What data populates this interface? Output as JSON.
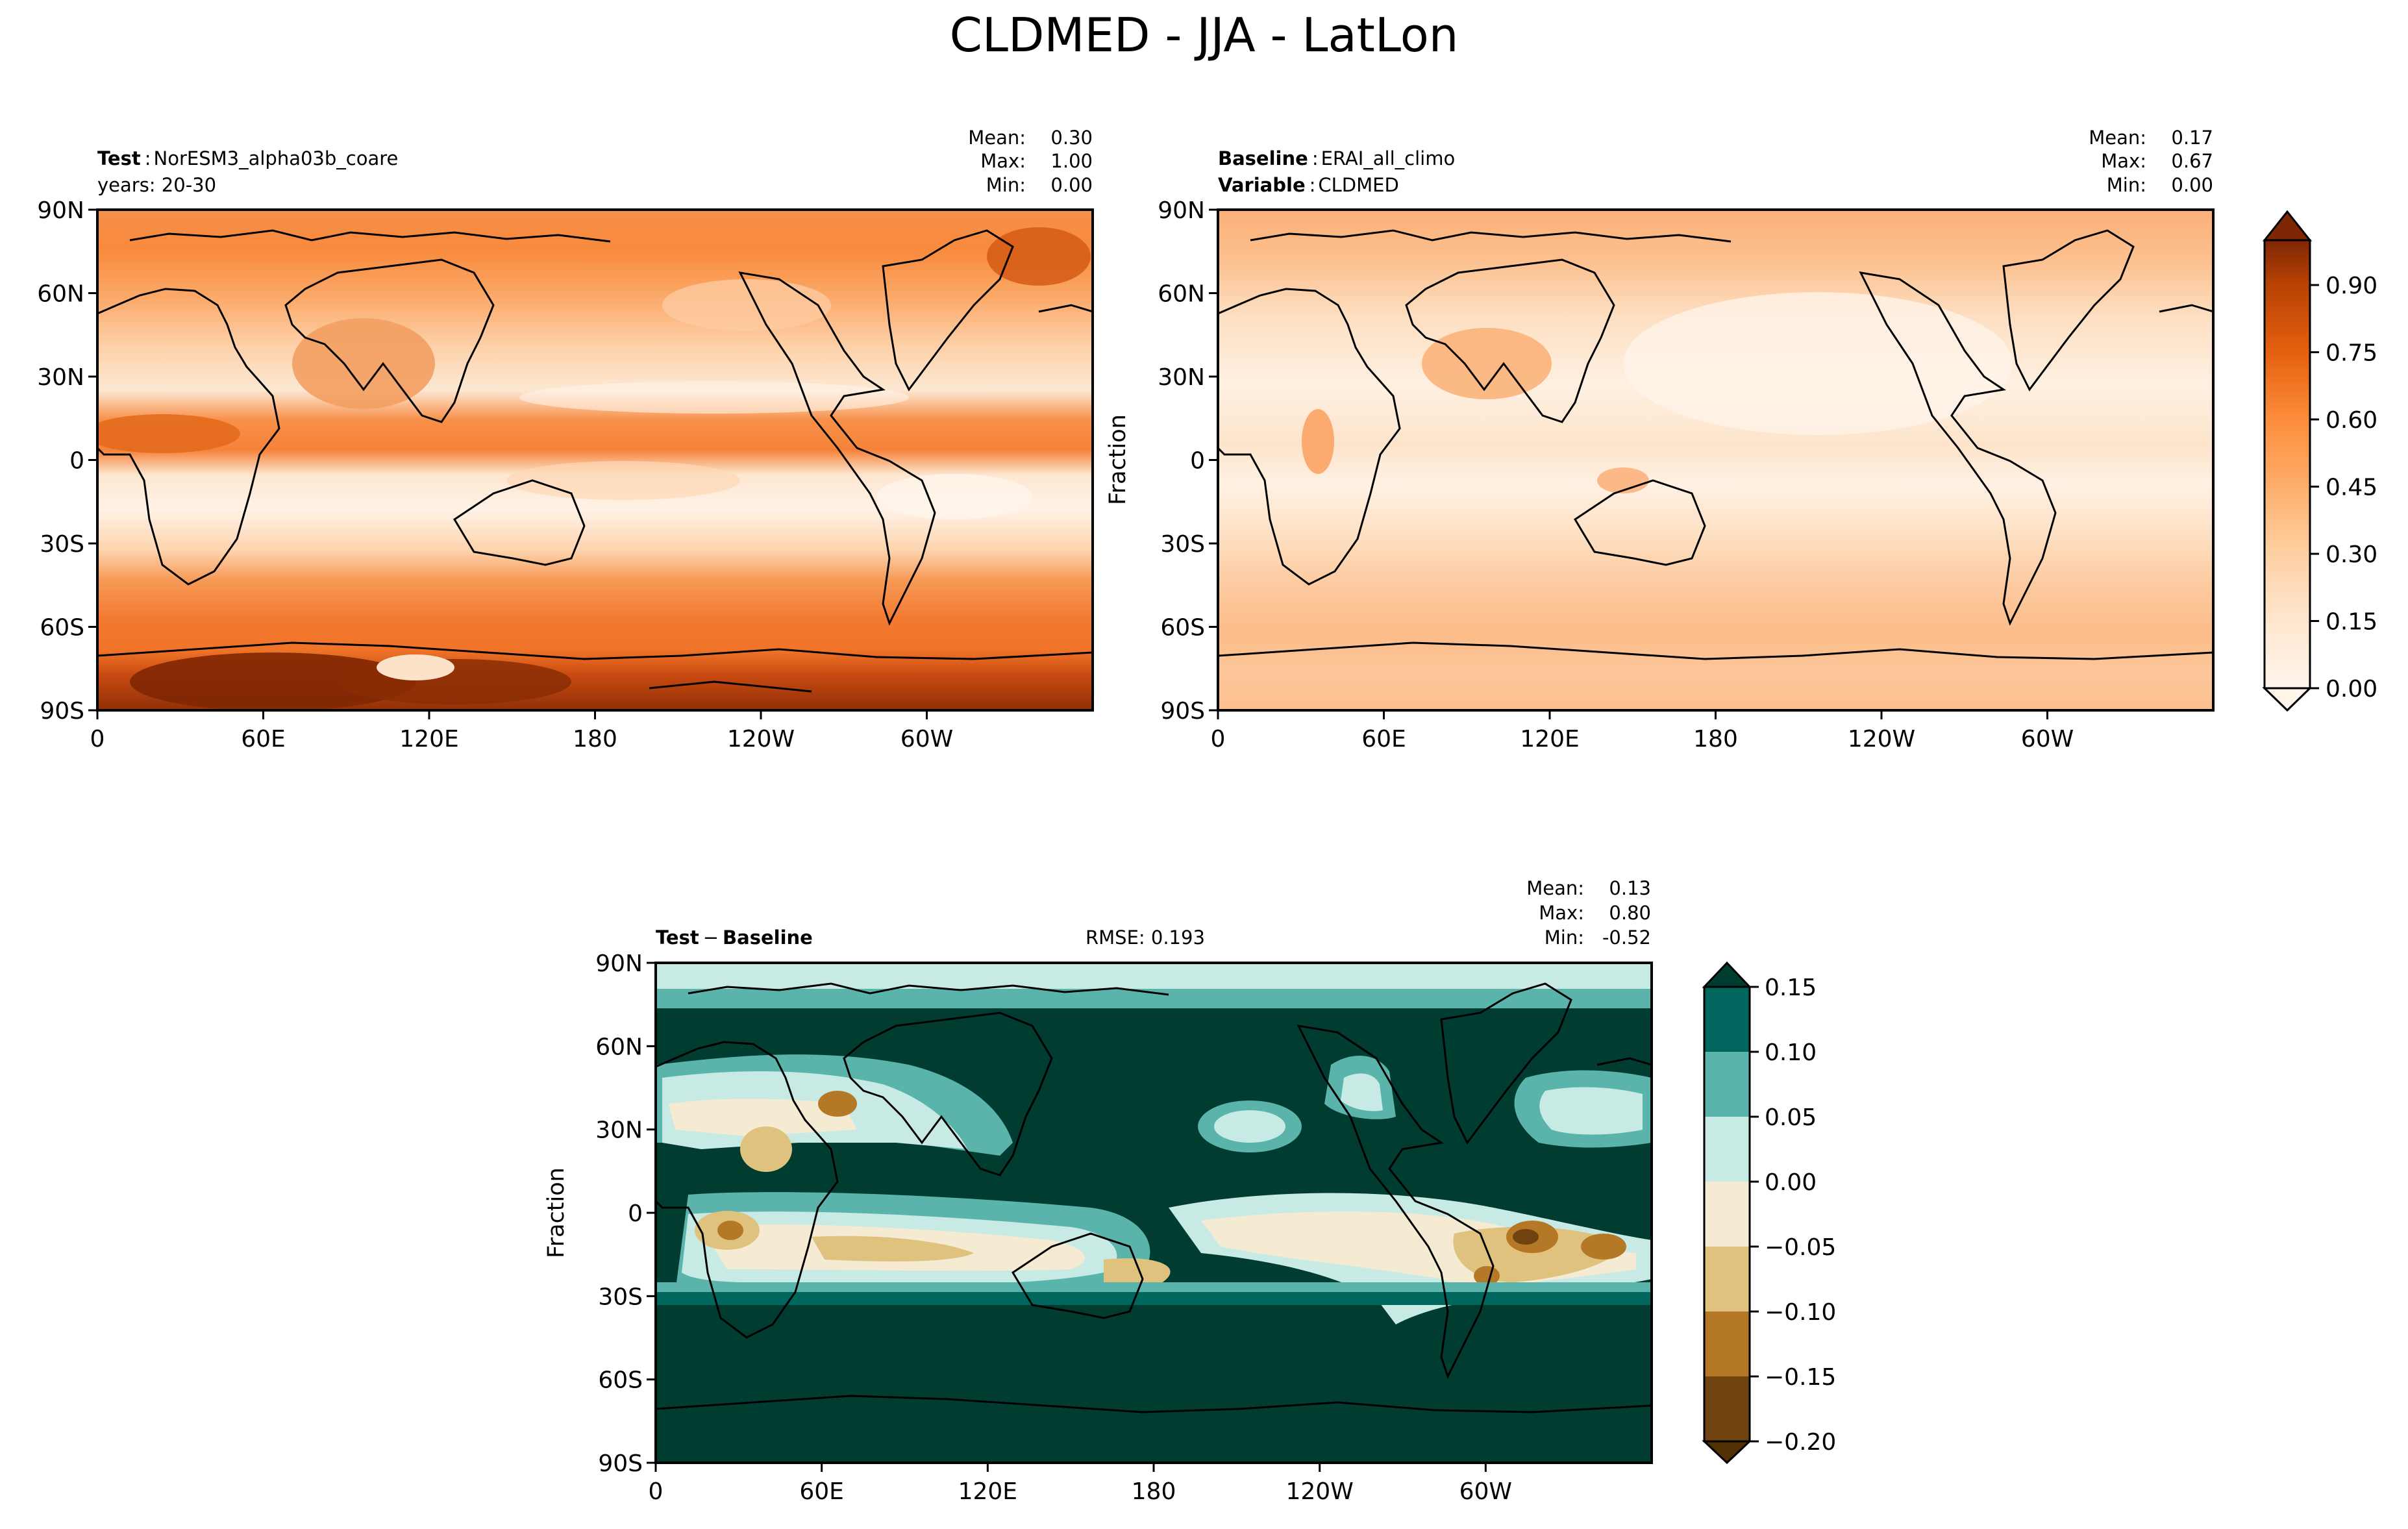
{
  "figure_title": "CLDMED - JJA - LatLon",
  "chart_data": [
    {
      "type": "heatmap",
      "panel": "test",
      "label_bold": "Test",
      "label_value": "NorESM3_alpha03b_coare",
      "subtitle": "years: 20-30",
      "stats": {
        "mean_label": "Mean:",
        "mean": "0.30",
        "max_label": "Max:",
        "max": "1.00",
        "min_label": "Min:",
        "min": "0.00"
      },
      "xticks": [
        "0",
        "60E",
        "120E",
        "180",
        "120W",
        "60W"
      ],
      "yticks": [
        "90N",
        "60N",
        "30N",
        "0",
        "30S",
        "60S",
        "90S"
      ],
      "xlim": [
        0,
        360
      ],
      "ylim": [
        -90,
        90
      ],
      "ylabel": "",
      "colormap": "Oranges",
      "vmin": 0.0,
      "vmax": 1.0
    },
    {
      "type": "heatmap",
      "panel": "baseline",
      "label_bold": "Baseline",
      "label_value": "ERAI_all_climo",
      "label2_bold": "Variable",
      "label2_value": "CLDMED",
      "stats": {
        "mean_label": "Mean:",
        "mean": "0.17",
        "max_label": "Max:",
        "max": "0.67",
        "min_label": "Min:",
        "min": "0.00"
      },
      "xticks": [
        "0",
        "60E",
        "120E",
        "180",
        "120W",
        "60W"
      ],
      "yticks": [
        "90N",
        "60N",
        "30N",
        "0",
        "30S",
        "60S",
        "90S"
      ],
      "xlim": [
        0,
        360
      ],
      "ylim": [
        -90,
        90
      ],
      "ylabel": "Fraction",
      "colormap": "Oranges",
      "colorbar_ticks": [
        "0.00",
        "0.15",
        "0.30",
        "0.45",
        "0.60",
        "0.75",
        "0.90"
      ],
      "colorbar_range": [
        0.0,
        1.0
      ]
    },
    {
      "type": "heatmap",
      "panel": "difference",
      "label_bold_a": "Test",
      "label_op": "−",
      "label_bold_b": "Baseline",
      "rmse": "RMSE: 0.193",
      "stats": {
        "mean_label": "Mean:",
        "mean": "0.13",
        "max_label": "Max:",
        "max": "0.80",
        "min_label": "Min:",
        "min": "-0.52"
      },
      "xticks": [
        "0",
        "60E",
        "120E",
        "180",
        "120W",
        "60W"
      ],
      "yticks": [
        "90N",
        "60N",
        "30N",
        "0",
        "30S",
        "60S",
        "90S"
      ],
      "xlim": [
        0,
        360
      ],
      "ylim": [
        -90,
        90
      ],
      "ylabel": "Fraction",
      "colormap": "BrBG",
      "levels": [
        -0.2,
        -0.15,
        -0.1,
        -0.05,
        0.0,
        0.05,
        0.1,
        0.15
      ],
      "colorbar_ticks": [
        "−0.20",
        "−0.15",
        "−0.10",
        "−0.05",
        "0.00",
        "0.05",
        "0.10",
        "0.15"
      ],
      "level_colors": [
        "#6f4210",
        "#b57827",
        "#dfc27d",
        "#f5ebd3",
        "#c7eae5",
        "#5ab4ac",
        "#01665e"
      ]
    }
  ],
  "colors": {
    "oranges": [
      "#fff5eb",
      "#fee6ce",
      "#fdd0a2",
      "#fdae6b",
      "#fd8d3c",
      "#f16913",
      "#d94801",
      "#a63603",
      "#7f2704"
    ],
    "diff_positive_dark": "#003c30"
  }
}
